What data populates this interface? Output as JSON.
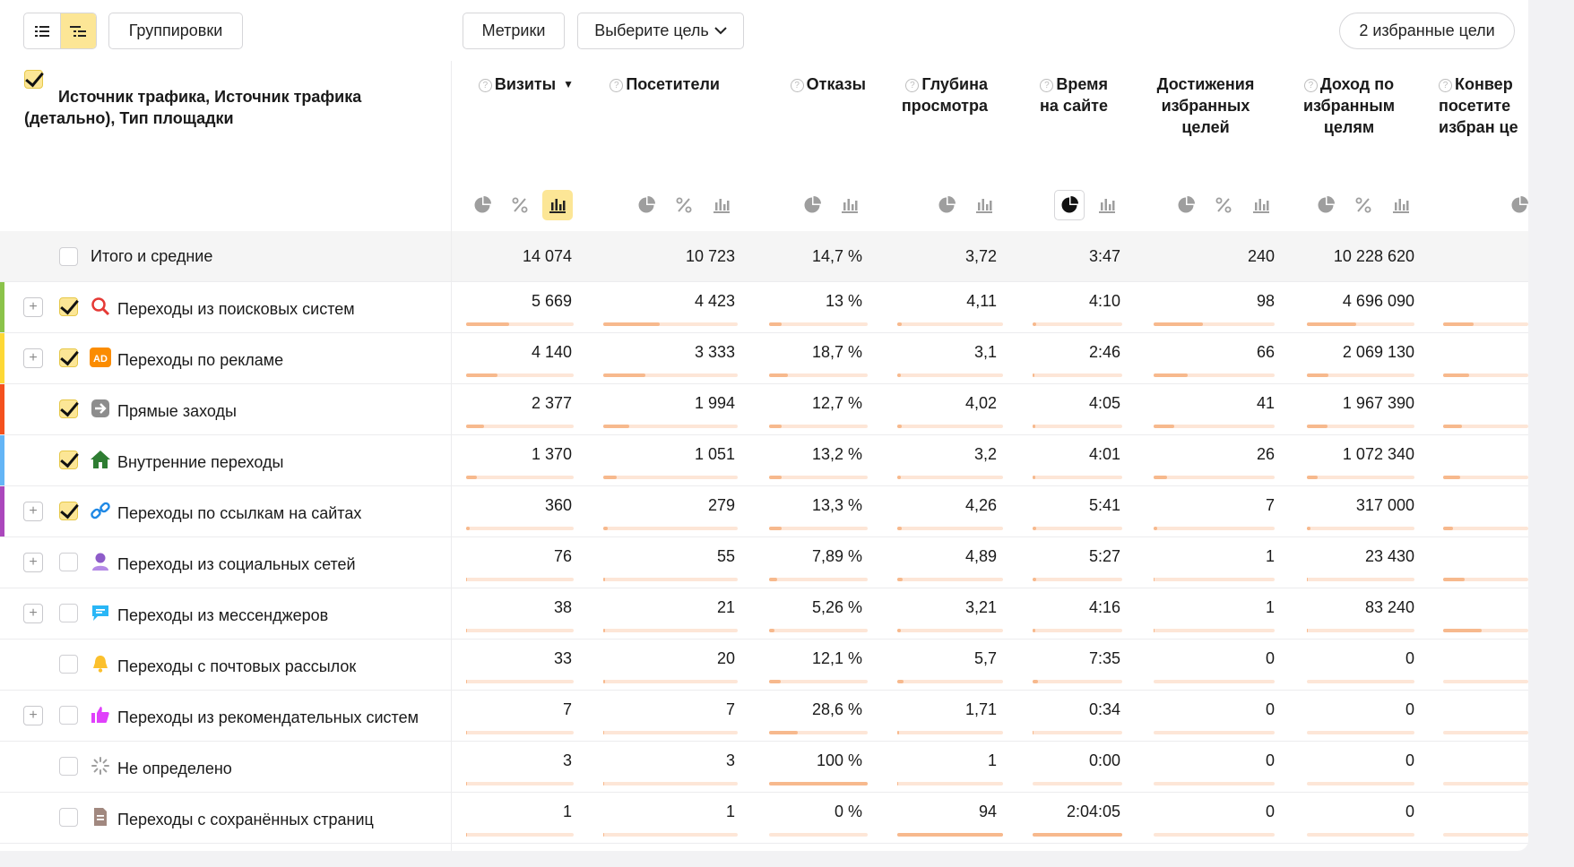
{
  "toolbar": {
    "groupings_label": "Группировки",
    "metrics_label": "Метрики",
    "goal_select_label": "Выберите цель",
    "favorite_goals_label": "2 избранные цели"
  },
  "header": {
    "dimension_title": "Источник трафика, Источник трафика (детально), Тип площадки",
    "columns": [
      {
        "id": "visits",
        "title": "Визиты",
        "sorted": true
      },
      {
        "id": "visitors",
        "title": "Посетители"
      },
      {
        "id": "bounces",
        "title": "Отказы"
      },
      {
        "id": "depth",
        "title": "Глубина просмотра"
      },
      {
        "id": "time",
        "title": "Время на сайте"
      },
      {
        "id": "achievements",
        "title": "Достижения избранных целей"
      },
      {
        "id": "revenue",
        "title": "Доход по избранным целям"
      },
      {
        "id": "conversion",
        "title": "Конвер посетите избран це"
      }
    ]
  },
  "totals": {
    "label": "Итого и средние",
    "values": [
      "14 074",
      "10 723",
      "14,7 %",
      "3,72",
      "3:47",
      "240",
      "10 228 620"
    ]
  },
  "rows": [
    {
      "label": "Переходы из поисковых систем",
      "icon": "search-icon",
      "stripe": "#8bc34a",
      "expandable": true,
      "checked": true,
      "values": [
        "5 669",
        "4 423",
        "13 %",
        "4,11",
        "4:10",
        "98",
        "4 696 090"
      ],
      "bars": [
        0.4,
        0.42,
        0.13,
        0.04,
        0.04,
        0.41,
        0.46,
        0.36
      ]
    },
    {
      "label": "Переходы по рекламе",
      "icon": "ad-icon",
      "stripe": "#fdd835",
      "expandable": true,
      "checked": true,
      "values": [
        "4 140",
        "3 333",
        "18,7 %",
        "3,1",
        "2:46",
        "66",
        "2 069 130"
      ],
      "bars": [
        0.29,
        0.31,
        0.19,
        0.03,
        0.02,
        0.28,
        0.2,
        0.3
      ]
    },
    {
      "label": "Прямые заходы",
      "icon": "direct-arrow-icon",
      "stripe": "#f4511e",
      "expandable": false,
      "checked": true,
      "values": [
        "2 377",
        "1 994",
        "12,7 %",
        "4,02",
        "4:05",
        "41",
        "1 967 390"
      ],
      "bars": [
        0.17,
        0.19,
        0.13,
        0.04,
        0.03,
        0.17,
        0.19,
        0.22
      ]
    },
    {
      "label": "Внутренние переходы",
      "icon": "home-icon",
      "stripe": "#64b5f6",
      "expandable": false,
      "checked": true,
      "values": [
        "1 370",
        "1 051",
        "13,2 %",
        "3,2",
        "4:01",
        "26",
        "1 072 340"
      ],
      "bars": [
        0.1,
        0.1,
        0.13,
        0.03,
        0.03,
        0.11,
        0.1,
        0.2
      ]
    },
    {
      "label": "Переходы по ссылкам на сайтах",
      "icon": "link-icon",
      "stripe": "#ab47bc",
      "expandable": true,
      "checked": true,
      "values": [
        "360",
        "279",
        "13,3 %",
        "4,26",
        "5:41",
        "7",
        "317 000"
      ],
      "bars": [
        0.03,
        0.03,
        0.13,
        0.04,
        0.04,
        0.03,
        0.03,
        0.12
      ]
    },
    {
      "label": "Переходы из социальных сетей",
      "icon": "social-icon",
      "stripe": "",
      "expandable": true,
      "checked": false,
      "values": [
        "76",
        "55",
        "7,89 %",
        "4,89",
        "5:27",
        "1",
        "23 430"
      ],
      "bars": [
        0.01,
        0.01,
        0.08,
        0.05,
        0.04,
        0.01,
        0.01,
        0.25
      ]
    },
    {
      "label": "Переходы из мессенджеров",
      "icon": "messenger-icon",
      "stripe": "",
      "expandable": true,
      "checked": false,
      "values": [
        "38",
        "21",
        "5,26 %",
        "3,21",
        "4:16",
        "1",
        "83 240"
      ],
      "bars": [
        0.01,
        0.01,
        0.05,
        0.03,
        0.03,
        0.01,
        0.01,
        0.45
      ]
    },
    {
      "label": "Переходы с почтовых рассылок",
      "icon": "bell-icon",
      "stripe": "",
      "expandable": false,
      "checked": false,
      "values": [
        "33",
        "20",
        "12,1 %",
        "5,7",
        "7:35",
        "0",
        "0"
      ],
      "bars": [
        0.01,
        0.01,
        0.12,
        0.06,
        0.06,
        0,
        0,
        0
      ]
    },
    {
      "label": "Переходы из рекомендательных систем",
      "icon": "thumbs-up-icon",
      "stripe": "",
      "expandable": true,
      "checked": false,
      "values": [
        "7",
        "7",
        "28,6 %",
        "1,71",
        "0:34",
        "0",
        "0"
      ],
      "bars": [
        0.005,
        0.005,
        0.29,
        0.02,
        0.01,
        0,
        0,
        0
      ]
    },
    {
      "label": "Не определено",
      "icon": "undefined-icon",
      "stripe": "",
      "expandable": false,
      "checked": false,
      "values": [
        "3",
        "3",
        "100 %",
        "1",
        "0:00",
        "0",
        "0"
      ],
      "bars": [
        0.003,
        0.003,
        1.0,
        0.01,
        0,
        0,
        0,
        0
      ]
    },
    {
      "label": "Переходы с сохранённых страниц",
      "icon": "saved-page-icon",
      "stripe": "",
      "expandable": false,
      "checked": false,
      "values": [
        "1",
        "1",
        "0 %",
        "94",
        "2:04:05",
        "0",
        "0"
      ],
      "bars": [
        0.002,
        0.002,
        0,
        1.0,
        1.0,
        0,
        0,
        0
      ]
    }
  ]
}
